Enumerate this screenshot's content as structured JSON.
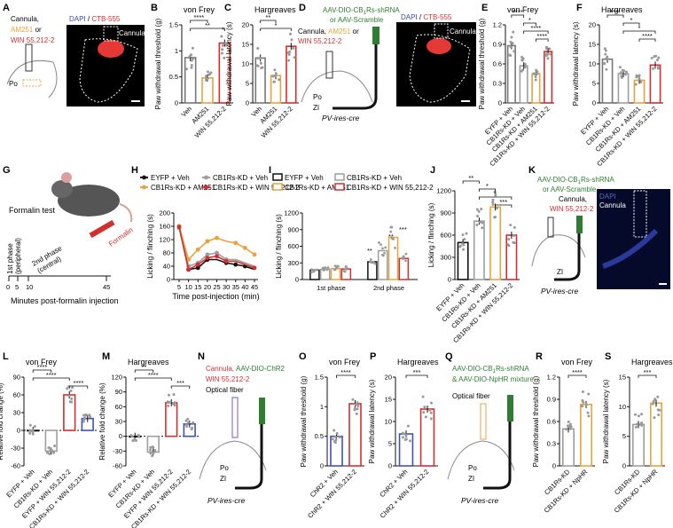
{
  "chart_data": [
    {
      "id": "B",
      "type": "bar",
      "title": "von Frey",
      "ylabel": "Paw withdrawal threshold (g)",
      "ylim": [
        0,
        1.5
      ],
      "yticks": [
        0,
        0.5,
        1,
        1.5
      ],
      "categories": [
        "Veh",
        "AM251",
        "WIN 55,212-2"
      ],
      "values": [
        0.87,
        0.48,
        1.15
      ],
      "colors": [
        "#777777",
        "#e8a33d",
        "#d32f2f"
      ],
      "sig": [
        {
          "a": 0,
          "b": 1,
          "label": "****"
        },
        {
          "a": 0,
          "b": 2,
          "label": "**"
        }
      ]
    },
    {
      "id": "C",
      "type": "bar",
      "title": "Hargreaves",
      "ylabel": "Paw withdrawal latency (s)",
      "ylim": [
        0,
        20
      ],
      "yticks": [
        0,
        5,
        10,
        15,
        20
      ],
      "categories": [
        "Veh",
        "AM251",
        "WIN 55,212-2"
      ],
      "values": [
        11.5,
        7.0,
        14.5
      ],
      "colors": [
        "#777777",
        "#e8a33d",
        "#d32f2f"
      ],
      "sig": [
        {
          "a": 0,
          "b": 1,
          "label": "**"
        },
        {
          "a": 0,
          "b": 2,
          "label": "*"
        }
      ]
    },
    {
      "id": "E",
      "type": "bar",
      "title": "von Frey",
      "ylabel": "Paw withdrawal threshold (g)",
      "ylim": [
        0,
        1.2
      ],
      "yticks": [
        0,
        0.3,
        0.6,
        0.9,
        1.2
      ],
      "categories": [
        "EYFP + Veh",
        "CB1Rs-KD + Veh",
        "CB1Rs-KD + AM251",
        "CB1Rs-KD + WIN 55,212-2"
      ],
      "values": [
        0.88,
        0.57,
        0.45,
        0.79
      ],
      "colors": [
        "#777777",
        "#9e9e9e",
        "#e8a33d",
        "#d32f2f"
      ],
      "sig": [
        {
          "a": 0,
          "b": 1,
          "label": "****"
        },
        {
          "a": 1,
          "b": 2,
          "label": "*"
        },
        {
          "a": 1,
          "b": 3,
          "label": "****"
        },
        {
          "a": 2,
          "b": 3,
          "label": "****"
        }
      ]
    },
    {
      "id": "F",
      "type": "bar",
      "title": "Hargreaves",
      "ylabel": "Paw withdrawal latency (s)",
      "ylim": [
        0,
        20
      ],
      "yticks": [
        0,
        5,
        10,
        15,
        20
      ],
      "categories": [
        "EYFP + Veh",
        "CB1Rs-KD + Veh",
        "CB1Rs-KD + AM251",
        "CB1Rs-KD + WIN 55,212-2"
      ],
      "values": [
        11.2,
        7.5,
        5.8,
        9.7
      ],
      "colors": [
        "#777777",
        "#9e9e9e",
        "#e8a33d",
        "#d32f2f"
      ],
      "sig": [
        {
          "a": 0,
          "b": 1,
          "label": "****"
        },
        {
          "a": 1,
          "b": 2,
          "label": "*"
        },
        {
          "a": 1,
          "b": 3,
          "label": "*"
        },
        {
          "a": 2,
          "b": 3,
          "label": "****"
        }
      ]
    },
    {
      "id": "H",
      "type": "line",
      "xlabel": "Time post-injection (min)",
      "ylabel": "Licking / flinching (s)",
      "ylim": [
        0,
        200
      ],
      "yticks": [
        0,
        40,
        80,
        120,
        160,
        200
      ],
      "x": [
        5,
        10,
        15,
        20,
        25,
        30,
        35,
        40,
        45
      ],
      "series": [
        {
          "name": "EYFP + Veh",
          "color": "#111111",
          "values": [
            160,
            30,
            35,
            60,
            60,
            50,
            45,
            40,
            30
          ]
        },
        {
          "name": "CB1Rs-KD + Veh",
          "color": "#9e9e9e",
          "values": [
            155,
            40,
            50,
            75,
            80,
            60,
            60,
            50,
            40
          ]
        },
        {
          "name": "CB1Rs-KD + AM251",
          "color": "#e8a33d",
          "values": [
            160,
            60,
            90,
            115,
            125,
            115,
            110,
            95,
            75
          ]
        },
        {
          "name": "CB1Rs-KD + WIN 55,212-2",
          "color": "#d32f2f",
          "values": [
            158,
            30,
            45,
            65,
            70,
            55,
            55,
            45,
            35
          ]
        }
      ]
    },
    {
      "id": "I",
      "type": "bar",
      "ylabel": "Licking / flinching (s)",
      "ylim": [
        0,
        1200
      ],
      "yticks": [
        0,
        300,
        600,
        900,
        1200
      ],
      "categories": [
        "1st phase",
        "2nd phase"
      ],
      "series": [
        {
          "name": "EYFP + Veh",
          "color": "#111111",
          "values": [
            170,
            320
          ]
        },
        {
          "name": "CB1Rs-KD + Veh",
          "color": "#9e9e9e",
          "values": [
            185,
            520
          ]
        },
        {
          "name": "CB1Rs-KD + AM251",
          "color": "#e8a33d",
          "values": [
            195,
            760
          ]
        },
        {
          "name": "CB1Rs-KD + WIN 55,212-2",
          "color": "#d32f2f",
          "values": [
            190,
            380
          ]
        }
      ],
      "sig": [
        "**",
        "*",
        "**",
        "***"
      ]
    },
    {
      "id": "J",
      "type": "bar",
      "ylabel": "Licking / flinching (s)",
      "ylim": [
        0,
        1200
      ],
      "yticks": [
        0,
        300,
        600,
        900,
        1200
      ],
      "categories": [
        "EYFP + Veh",
        "CB1Rs-KD + Veh",
        "CB1Rs-KD + AM251",
        "CB1Rs-KD + WIN 55,212-2"
      ],
      "values": [
        500,
        790,
        980,
        600
      ],
      "colors": [
        "#111111",
        "#9e9e9e",
        "#e8a33d",
        "#d32f2f"
      ],
      "sig": [
        {
          "a": 0,
          "b": 1,
          "label": "**"
        },
        {
          "a": 1,
          "b": 2,
          "label": "*"
        },
        {
          "a": 1,
          "b": 3,
          "label": "*"
        },
        {
          "a": 2,
          "b": 3,
          "label": "***"
        }
      ]
    },
    {
      "id": "L",
      "type": "bar",
      "title": "von Frey",
      "ylabel": "Relative fold change (%)",
      "ylim": [
        -60,
        90
      ],
      "yticks": [
        -60,
        -30,
        0,
        30,
        60,
        90
      ],
      "categories": [
        "EYFP + Veh",
        "CB1Rs-KD + Veh",
        "EYFP + WIN 55,212-2",
        "CB1Rs-KD + WIN 55,212-2"
      ],
      "values": [
        0,
        -35,
        60,
        20
      ],
      "colors": [
        "#111111",
        "#9e9e9e",
        "#d32f2f",
        "#3f51b5"
      ],
      "sig": [
        {
          "a": 0,
          "b": 1,
          "label": "****"
        },
        {
          "a": 0,
          "b": 2,
          "label": "****"
        },
        {
          "a": 2,
          "b": 3,
          "label": "****"
        }
      ]
    },
    {
      "id": "M",
      "type": "bar",
      "title": "Hargreaves",
      "ylabel": "Relative fold change (%)",
      "ylim": [
        -60,
        120
      ],
      "yticks": [
        -60,
        -30,
        0,
        30,
        60,
        90,
        120
      ],
      "categories": [
        "EYFP + Veh",
        "CB1Rs-KD + Veh",
        "EYFP + WIN 55,212-2",
        "CB1Rs-KD + WIN 55,212-2"
      ],
      "values": [
        0,
        -32,
        68,
        25
      ],
      "colors": [
        "#111111",
        "#9e9e9e",
        "#d32f2f",
        "#3f51b5"
      ],
      "sig": [
        {
          "a": 0,
          "b": 1,
          "label": "**"
        },
        {
          "a": 0,
          "b": 2,
          "label": "****"
        },
        {
          "a": 2,
          "b": 3,
          "label": "***"
        }
      ]
    },
    {
      "id": "O",
      "type": "bar",
      "title": "von Frey",
      "ylabel": "Paw withdrawal threshold (g)",
      "ylim": [
        0,
        1.5
      ],
      "yticks": [
        0,
        0.5,
        1,
        1.5
      ],
      "categories": [
        "ChR2 + Veh",
        "ChR2 + WIN 55,212-2"
      ],
      "values": [
        0.5,
        1.05
      ],
      "colors": [
        "#3f51b5",
        "#d32f2f"
      ],
      "sig": [
        {
          "a": 0,
          "b": 1,
          "label": "****"
        }
      ]
    },
    {
      "id": "P",
      "type": "bar",
      "title": "Hargreaves",
      "ylabel": "Paw withdrawal latency (s)",
      "ylim": [
        0,
        20
      ],
      "yticks": [
        0,
        5,
        10,
        15,
        20
      ],
      "categories": [
        "ChR2 + Veh",
        "ChR2 + WIN 55,212-2"
      ],
      "values": [
        7.2,
        12.8
      ],
      "colors": [
        "#3f51b5",
        "#d32f2f"
      ],
      "sig": [
        {
          "a": 0,
          "b": 1,
          "label": "***"
        }
      ]
    },
    {
      "id": "R",
      "type": "bar",
      "title": "von Frey",
      "ylabel": "Paw withdrawal threshold (g)",
      "ylim": [
        0,
        1.2
      ],
      "yticks": [
        0,
        0.3,
        0.6,
        0.9,
        1.2
      ],
      "categories": [
        "CB1Rs-KD",
        "CB1Rs-KD + NpHR"
      ],
      "values": [
        0.5,
        0.83
      ],
      "colors": [
        "#9e9e9e",
        "#e8a33d"
      ],
      "sig": [
        {
          "a": 0,
          "b": 1,
          "label": "****"
        }
      ]
    },
    {
      "id": "S",
      "type": "bar",
      "title": "Hargreaves",
      "ylabel": "Paw withdrawal latency (s)",
      "ylim": [
        0,
        15
      ],
      "yticks": [
        0,
        5,
        10,
        15
      ],
      "categories": [
        "CB1Rs-KD",
        "CB1Rs-KD + NpHR"
      ],
      "values": [
        7.0,
        10.6
      ],
      "colors": [
        "#9e9e9e",
        "#e8a33d"
      ],
      "sig": [
        {
          "a": 0,
          "b": 1,
          "label": "***"
        }
      ]
    }
  ],
  "text": {
    "A": {
      "label": "A",
      "cannula": "Cannula,",
      "drug1": "AM251",
      "or": " or",
      "drug2": "WIN 55,212-2",
      "po": "Po",
      "dapi": "DAPI",
      "slash": " / ",
      "ctb": "CTB-555",
      "cannula_img": "Cannula"
    },
    "D": {
      "label": "D",
      "virus1": "AAV-DIO-CB",
      "virus1b": "Rs-shRNA",
      "virus2": "or AAV-Scramble",
      "cannula": "Cannula,",
      "drug1": "AM251",
      "or": " or",
      "drug2": "WIN 55,212-2",
      "po": "Po",
      "zi": "ZI",
      "cre": "PV-ires-cre",
      "dapi": "DAPI",
      "slash": " / ",
      "ctb": "CTB-555",
      "cannula_img": "Cannula"
    },
    "G": {
      "label": "G",
      "title": "Formalin test",
      "phase1": "1st phase",
      "phase1b": "(peripheral)",
      "phase2": "2nd phase",
      "phase2b": "(central)",
      "formalin": "Formalin",
      "axis": "Minutes post-formalin injection",
      "ticks": [
        "0",
        "5",
        "10",
        "45"
      ]
    },
    "K": {
      "label": "K",
      "virus1": "AAV-DIO-CB",
      "virus1b": "Rs-shRNA",
      "virus2": "or AAV-Scramble",
      "cannula": "Cannula,",
      "drug": "WIN 55,212-2",
      "zi": "ZI",
      "cre": "PV-ires-cre",
      "dapi": "DAPI",
      "cannula_img": "Cannula"
    },
    "N": {
      "label": "N",
      "cannula": "Cannula,",
      "virus": "AAV-DIO-ChR2",
      "drug": "WIN 55,212-2",
      "fiber": "Optical fiber",
      "po": "Po",
      "zi": "ZI",
      "cre": "PV-ires-cre"
    },
    "Q": {
      "label": "Q",
      "virus1": "AAV-DIO-CB",
      "virus1b": "Rs-shRNA",
      "virus2": "& AAV-DIO-NpHR mixture",
      "fiber": "Optical fiber",
      "po": "Po",
      "zi": "ZI",
      "cre": "PV-ires-cre"
    },
    "labels": {
      "B": "B",
      "C": "C",
      "E": "E",
      "F": "F",
      "H": "H",
      "I": "I",
      "J": "J",
      "L": "L",
      "M": "M",
      "O": "O",
      "P": "P",
      "R": "R",
      "S": "S"
    }
  }
}
